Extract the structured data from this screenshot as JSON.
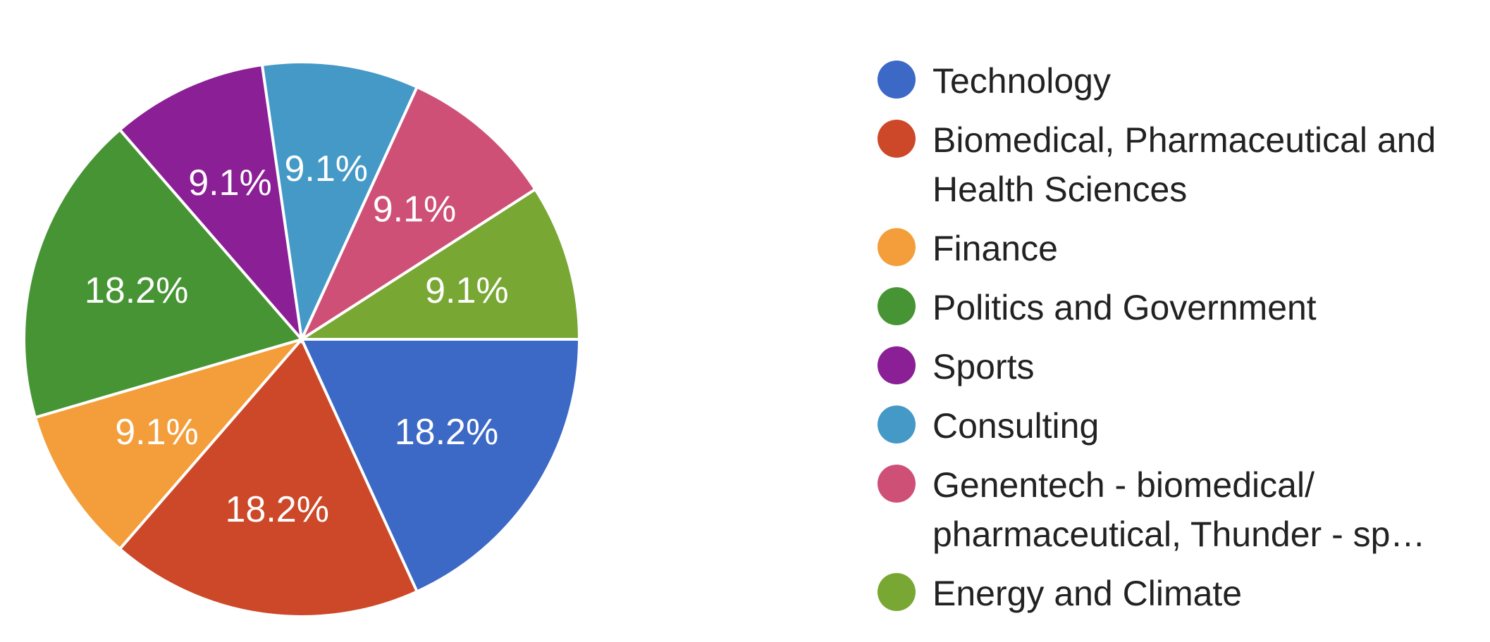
{
  "chart_data": {
    "type": "pie",
    "slices": [
      {
        "label": "Technology",
        "value": 18.2,
        "display": "18.2%",
        "color": "#3c68c6"
      },
      {
        "label": "Biomedical, Pharmaceutical and Health Sciences",
        "value": 18.2,
        "display": "18.2%",
        "color": "#cc4828"
      },
      {
        "label": "Finance",
        "value": 9.1,
        "display": "9.1%",
        "color": "#f39e3a"
      },
      {
        "label": "Politics and Government",
        "value": 18.2,
        "display": "18.2%",
        "color": "#479434"
      },
      {
        "label": "Sports",
        "value": 9.1,
        "display": "9.1%",
        "color": "#8b1f96"
      },
      {
        "label": "Consulting",
        "value": 9.1,
        "display": "9.1%",
        "color": "#4599c6"
      },
      {
        "label": "Genentech - biomedical/ pharmaceutical, Thunder - sp…",
        "value": 9.1,
        "display": "9.1%",
        "color": "#cf5077"
      },
      {
        "label": "Energy and Climate",
        "value": 9.1,
        "display": "9.1%",
        "color": "#78a734"
      }
    ],
    "legend": {
      "placement": "right",
      "lines": [
        [
          "Technology"
        ],
        [
          "Biomedical, Pharmaceutical and",
          "Health Sciences"
        ],
        [
          "Finance"
        ],
        [
          "Politics and Government"
        ],
        [
          "Sports"
        ],
        [
          "Consulting"
        ],
        [
          "Genentech - biomedical/",
          "pharmaceutical, Thunder - sp…"
        ],
        [
          "Energy and Climate"
        ]
      ]
    }
  }
}
